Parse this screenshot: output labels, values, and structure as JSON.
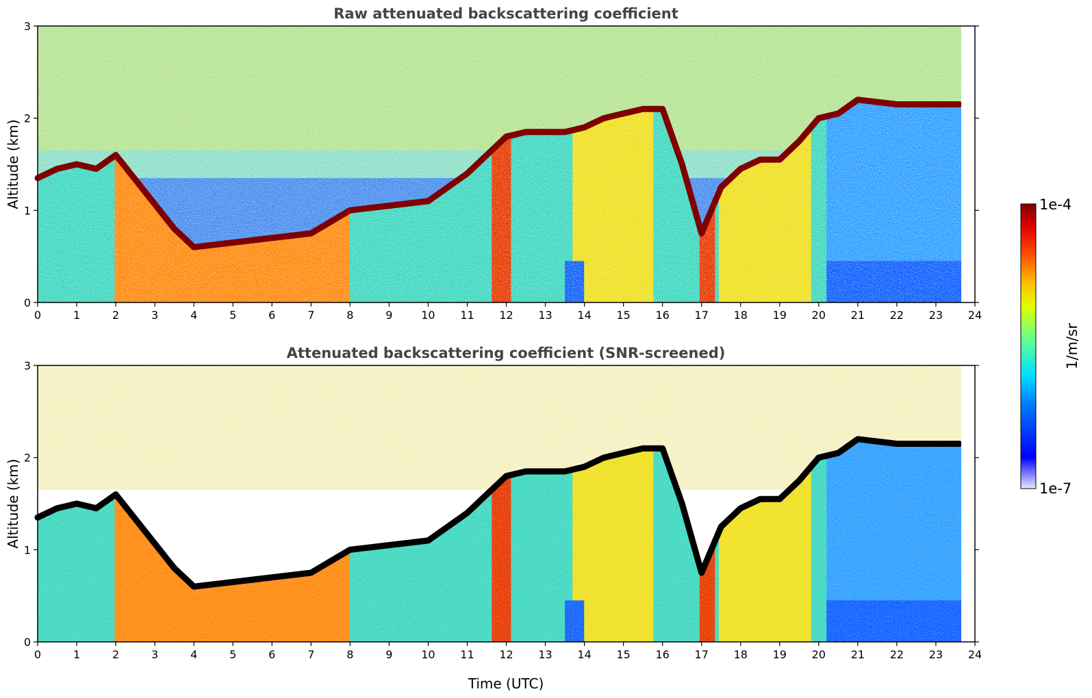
{
  "chart_data": [
    {
      "type": "heatmap",
      "title": "Raw attenuated backscattering coefficient",
      "xlabel": "",
      "ylabel": "Altitude (km)",
      "xlim": [
        0,
        24
      ],
      "ylim": [
        0,
        3
      ],
      "x_ticks": [
        "0",
        "1",
        "2",
        "3",
        "4",
        "5",
        "6",
        "7",
        "8",
        "9",
        "10",
        "11",
        "12",
        "13",
        "14",
        "15",
        "16",
        "17",
        "18",
        "19",
        "20",
        "21",
        "22",
        "23",
        "24"
      ],
      "y_ticks": [
        "0",
        "1",
        "2",
        "3"
      ],
      "data_end_time": 23.65,
      "cloud_layer": {
        "time": [
          0.0,
          0.5,
          1.0,
          1.5,
          2.0,
          3.5,
          4.0,
          7.0,
          8.0,
          9.0,
          10.0,
          11.0,
          11.5,
          12.0,
          12.5,
          13.0,
          13.5,
          14.0,
          14.5,
          15.0,
          15.5,
          16.0,
          16.5,
          17.0,
          17.5,
          18.0,
          18.5,
          19.0,
          19.5,
          20.0,
          20.5,
          21.0,
          22.0,
          23.0,
          23.6
        ],
        "altitude_km": [
          1.35,
          1.45,
          1.5,
          1.45,
          1.6,
          0.8,
          0.6,
          0.75,
          1.0,
          1.05,
          1.1,
          1.4,
          1.6,
          1.8,
          1.85,
          1.85,
          1.85,
          1.9,
          2.0,
          2.05,
          2.1,
          2.1,
          1.5,
          0.75,
          1.25,
          1.45,
          1.55,
          1.55,
          1.75,
          2.0,
          2.05,
          2.2,
          2.15,
          2.15,
          2.15
        ]
      },
      "colorbar": {
        "max_label": "1e-4",
        "min_label": "1e-7",
        "label": "1/m/sr",
        "scale": "log",
        "colormap": "jet"
      }
    },
    {
      "type": "heatmap",
      "title": "Attenuated backscattering coefficient (SNR-screened)",
      "xlabel": "Time (UTC)",
      "ylabel": "Altitude (km)",
      "xlim": [
        0,
        24
      ],
      "ylim": [
        0,
        3
      ],
      "x_ticks": [
        "0",
        "1",
        "2",
        "3",
        "4",
        "5",
        "6",
        "7",
        "8",
        "9",
        "10",
        "11",
        "12",
        "13",
        "14",
        "15",
        "16",
        "17",
        "18",
        "19",
        "20",
        "21",
        "22",
        "23",
        "24"
      ],
      "y_ticks": [
        "0",
        "1",
        "2",
        "3"
      ],
      "data_end_time": 23.65,
      "screened": true
    }
  ],
  "colors": {
    "cloud_core_screened": "#000000",
    "cloud_core_raw": "#7f0000",
    "nodata": "#ffffff"
  }
}
